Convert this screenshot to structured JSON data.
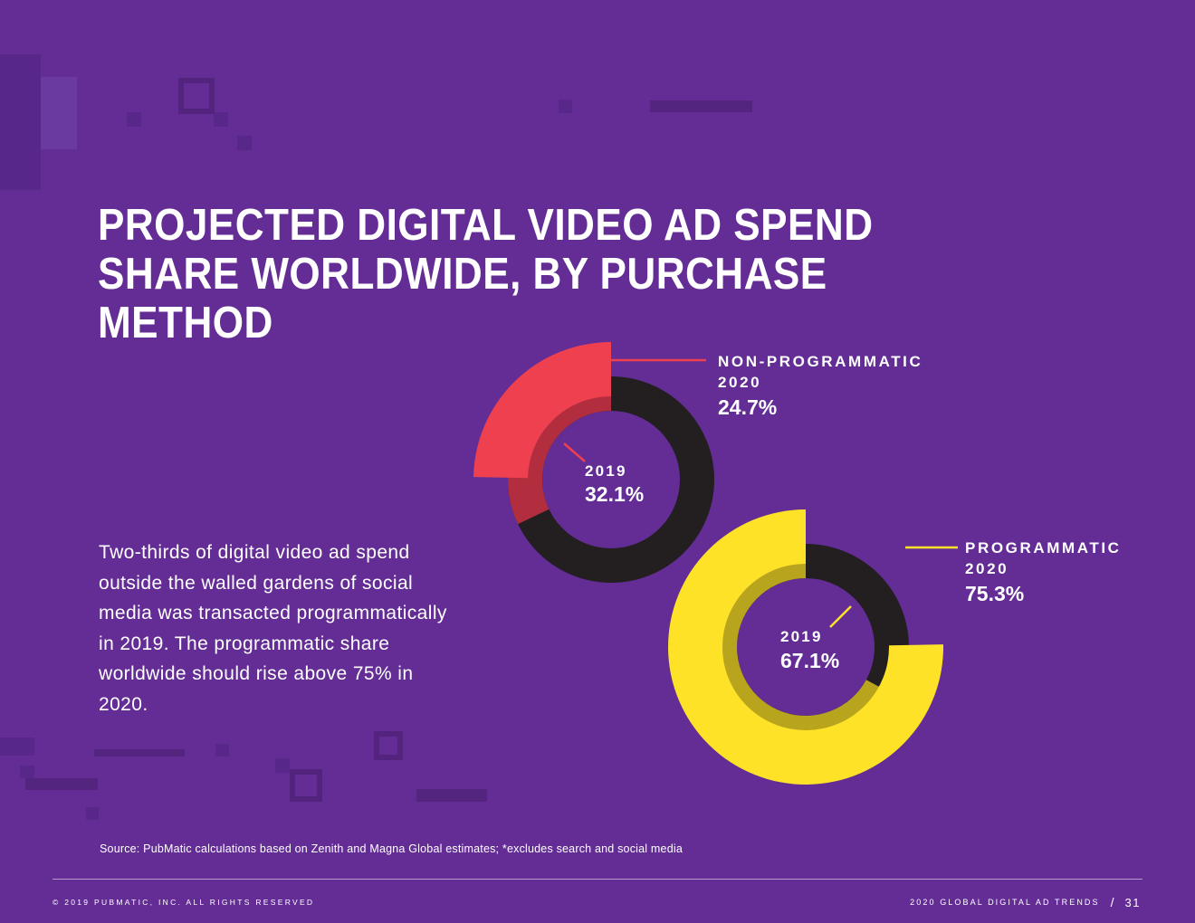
{
  "title": "PROJECTED DIGITAL VIDEO AD SPEND SHARE WORLDWIDE, BY PURCHASE METHOD",
  "body_text": "Two-thirds of digital video ad spend outside the walled gardens of social media was transacted programmatically in 2019. The programmatic share worldwide should rise above 75% in 2020.",
  "source": "Source: PubMatic calculations based on Zenith and Magna Global estimates; *excludes search and social media",
  "footer": {
    "left": "© 2019 PUBMATIC, INC. ALL RIGHTS RESERVED",
    "right": "2020 GLOBAL DIGITAL AD TRENDS",
    "separator": "/",
    "page": "31"
  },
  "colors": {
    "background": "#632d95",
    "non_programmatic_2020": "#ef4050",
    "non_programmatic_2019": "#b22e3e",
    "programmatic_2020": "#fde228",
    "programmatic_2019": "#b9a41e",
    "remainder": "#231f20"
  },
  "chart_data": [
    {
      "type": "pie",
      "title": "NON-PROGRAMMATIC",
      "series": [
        {
          "name": "2020",
          "value": 24.7,
          "label": "24.7%"
        },
        {
          "name": "2019",
          "value": 32.1,
          "label": "32.1%"
        }
      ],
      "outer_label": {
        "line1": "NON-PROGRAMMATIC",
        "line2": "2020",
        "value": "24.7%"
      },
      "inner_label": {
        "year": "2019",
        "value": "32.1%"
      }
    },
    {
      "type": "pie",
      "title": "PROGRAMMATIC",
      "series": [
        {
          "name": "2020",
          "value": 75.3,
          "label": "75.3%"
        },
        {
          "name": "2019",
          "value": 67.1,
          "label": "67.1%"
        }
      ],
      "outer_label": {
        "line1": "PROGRAMMATIC",
        "line2": "2020",
        "value": "75.3%"
      },
      "inner_label": {
        "year": "2019",
        "value": "67.1%"
      }
    }
  ]
}
